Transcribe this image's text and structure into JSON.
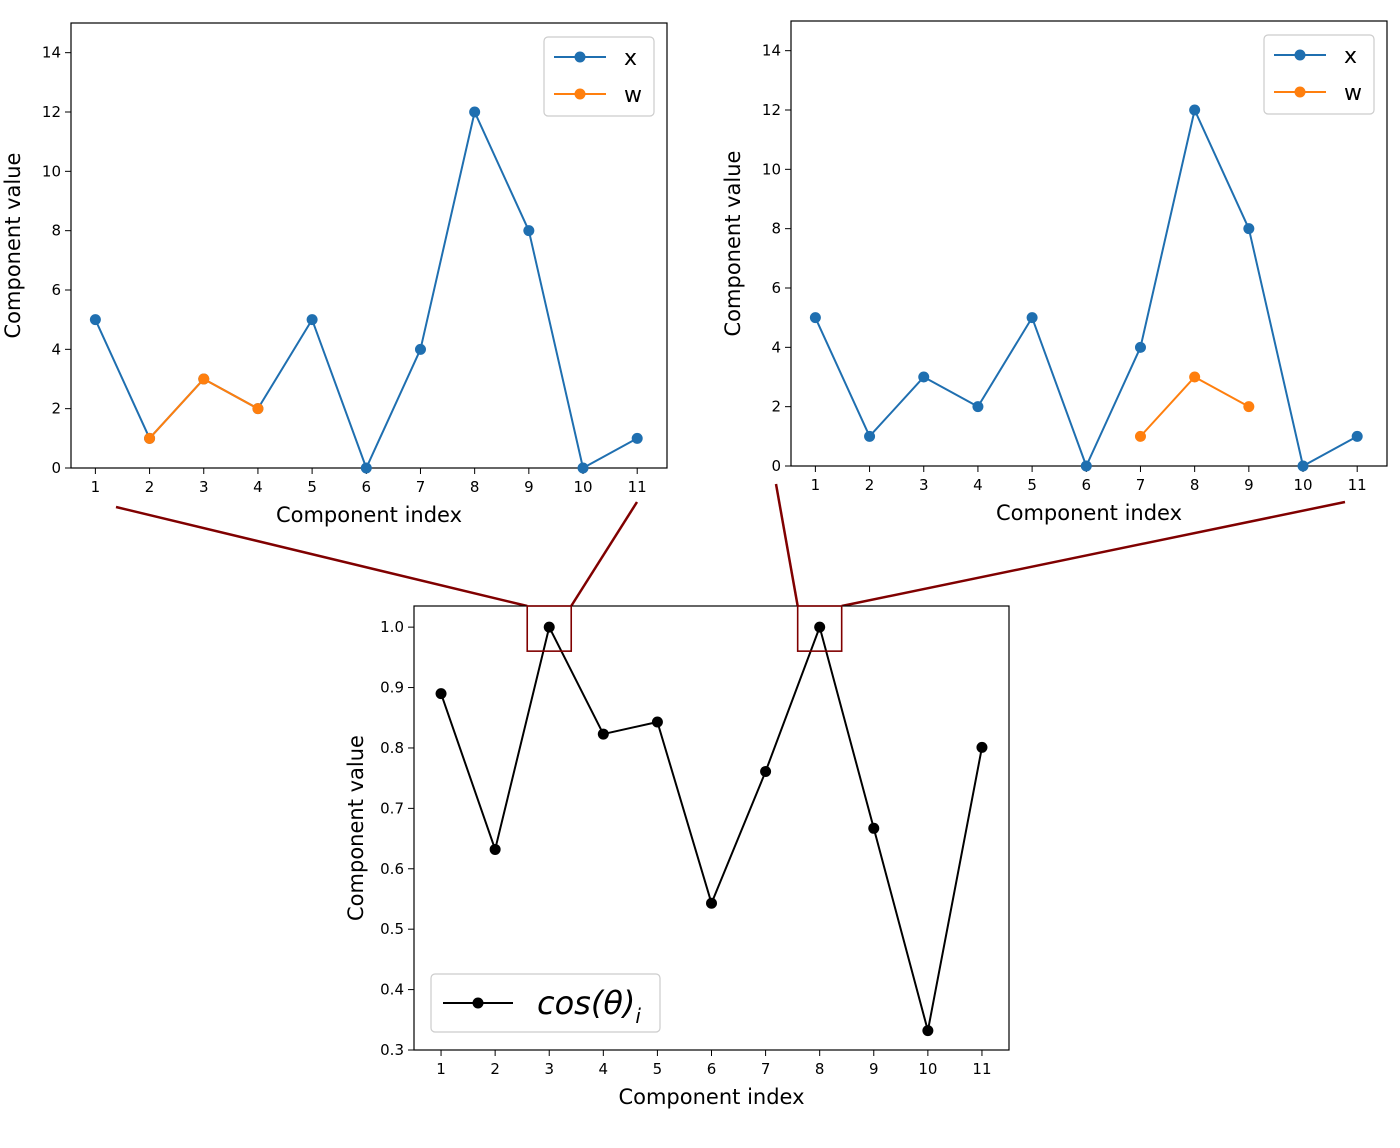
{
  "chart_data": [
    {
      "id": "top-left",
      "type": "line",
      "xlabel": "Component index",
      "ylabel": "Component value",
      "xticks": [
        1,
        2,
        3,
        4,
        5,
        6,
        7,
        8,
        9,
        10,
        11
      ],
      "yticks": [
        0,
        2,
        4,
        6,
        8,
        10,
        12,
        14
      ],
      "xlim": [
        0.55,
        11.55
      ],
      "ylim": [
        0,
        15
      ],
      "legend_position": "top-right",
      "series": [
        {
          "name": "x",
          "color": "#1f6fb0",
          "x": [
            1,
            2,
            3,
            4,
            5,
            6,
            7,
            8,
            9,
            10,
            11
          ],
          "y": [
            5,
            1,
            3,
            2,
            5,
            0,
            4,
            12,
            8,
            0,
            1
          ]
        },
        {
          "name": "w",
          "color": "#ff7f0e",
          "x": [
            2,
            3,
            4
          ],
          "y": [
            1,
            3,
            2
          ]
        }
      ]
    },
    {
      "id": "top-right",
      "type": "line",
      "xlabel": "Component index",
      "ylabel": "Component value",
      "xticks": [
        1,
        2,
        3,
        4,
        5,
        6,
        7,
        8,
        9,
        10,
        11
      ],
      "yticks": [
        0,
        2,
        4,
        6,
        8,
        10,
        12,
        14
      ],
      "xlim": [
        0.55,
        11.55
      ],
      "ylim": [
        0,
        15
      ],
      "legend_position": "top-right",
      "series": [
        {
          "name": "x",
          "color": "#1f6fb0",
          "x": [
            1,
            2,
            3,
            4,
            5,
            6,
            7,
            8,
            9,
            10,
            11
          ],
          "y": [
            5,
            1,
            3,
            2,
            5,
            0,
            4,
            12,
            8,
            0,
            1
          ]
        },
        {
          "name": "w",
          "color": "#ff7f0e",
          "x": [
            7,
            8,
            9
          ],
          "y": [
            1,
            3,
            2
          ]
        }
      ]
    },
    {
      "id": "bottom",
      "type": "line",
      "xlabel": "Component index",
      "ylabel": "Component value",
      "xticks": [
        1,
        2,
        3,
        4,
        5,
        6,
        7,
        8,
        9,
        10,
        11
      ],
      "yticks": [
        0.3,
        0.4,
        0.5,
        0.6,
        0.7,
        0.8,
        0.9,
        1.0
      ],
      "ytick_labels": [
        "0.3",
        "0.4",
        "0.5",
        "0.6",
        "0.7",
        "0.8",
        "0.9",
        "1.0"
      ],
      "xlim": [
        0.5,
        11.5
      ],
      "ylim": [
        0.3,
        1.035
      ],
      "legend_position": "lower-left",
      "series": [
        {
          "name": "cos(θ)",
          "subscript": "i",
          "color": "#000000",
          "x": [
            1,
            2,
            3,
            4,
            5,
            6,
            7,
            8,
            9,
            10,
            11
          ],
          "y": [
            0.89,
            0.632,
            1.0,
            0.823,
            0.843,
            0.543,
            0.761,
            1.0,
            0.667,
            0.332,
            0.801
          ]
        }
      ],
      "highlights": [
        {
          "x": 3,
          "links_to": "top-left",
          "color": "#800000"
        },
        {
          "x": 8,
          "links_to": "top-right",
          "color": "#800000"
        }
      ]
    }
  ]
}
